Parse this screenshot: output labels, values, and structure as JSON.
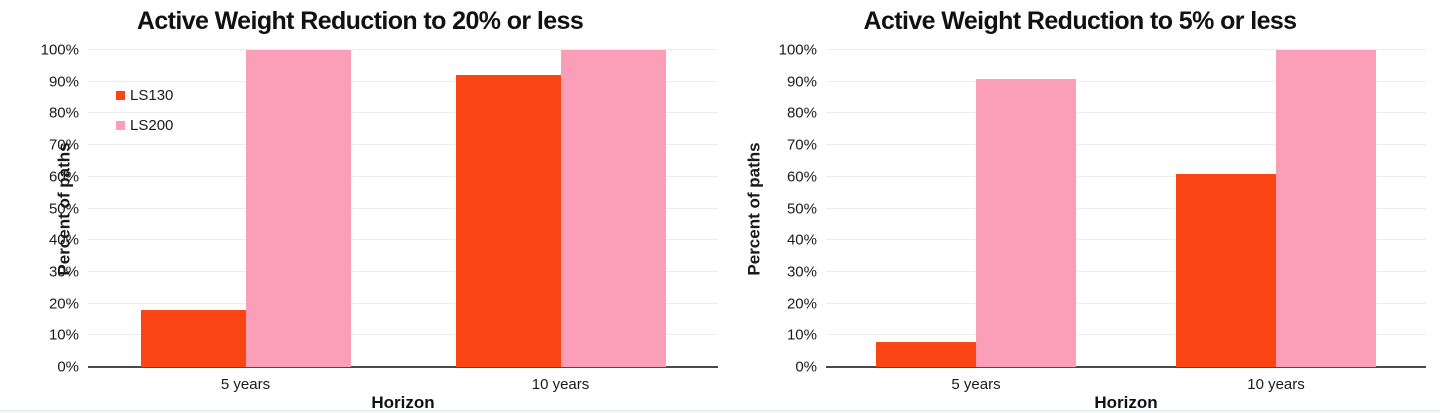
{
  "chart_data": [
    {
      "type": "bar",
      "title": "Active Weight Reduction to 20% or less",
      "xlabel": "Horizon",
      "ylabel": "Percent of paths",
      "categories": [
        "5 years",
        "10 years"
      ],
      "series": [
        {
          "name": "LS130",
          "color": "#FB4514",
          "values": [
            18,
            92
          ]
        },
        {
          "name": "LS200",
          "color": "#FA9FB7",
          "values": [
            100,
            100
          ]
        }
      ],
      "ylim": [
        0,
        100
      ],
      "yticks": [
        "0%",
        "10%",
        "20%",
        "30%",
        "40%",
        "50%",
        "60%",
        "70%",
        "80%",
        "90%",
        "100%"
      ],
      "grid": "horizontal",
      "legend": {
        "visible": true,
        "position": "upper-left"
      }
    },
    {
      "type": "bar",
      "title": "Active Weight Reduction to 5% or less",
      "xlabel": "Horizon",
      "ylabel": "Percent of paths",
      "categories": [
        "5 years",
        "10 years"
      ],
      "series": [
        {
          "name": "LS130",
          "color": "#FB4514",
          "values": [
            8,
            61
          ]
        },
        {
          "name": "LS200",
          "color": "#FA9FB7",
          "values": [
            91,
            100
          ]
        }
      ],
      "ylim": [
        0,
        100
      ],
      "yticks": [
        "0%",
        "10%",
        "20%",
        "30%",
        "40%",
        "50%",
        "60%",
        "70%",
        "80%",
        "90%",
        "100%"
      ],
      "grid": "horizontal",
      "legend": {
        "visible": false,
        "position": "none"
      }
    }
  ],
  "style_colors": {
    "ls130": "#FB4514",
    "ls200": "#FA9FB7",
    "gridline": "#ECECEC",
    "axis_line": "#4A4A4A",
    "text": "#1A1A1A"
  }
}
